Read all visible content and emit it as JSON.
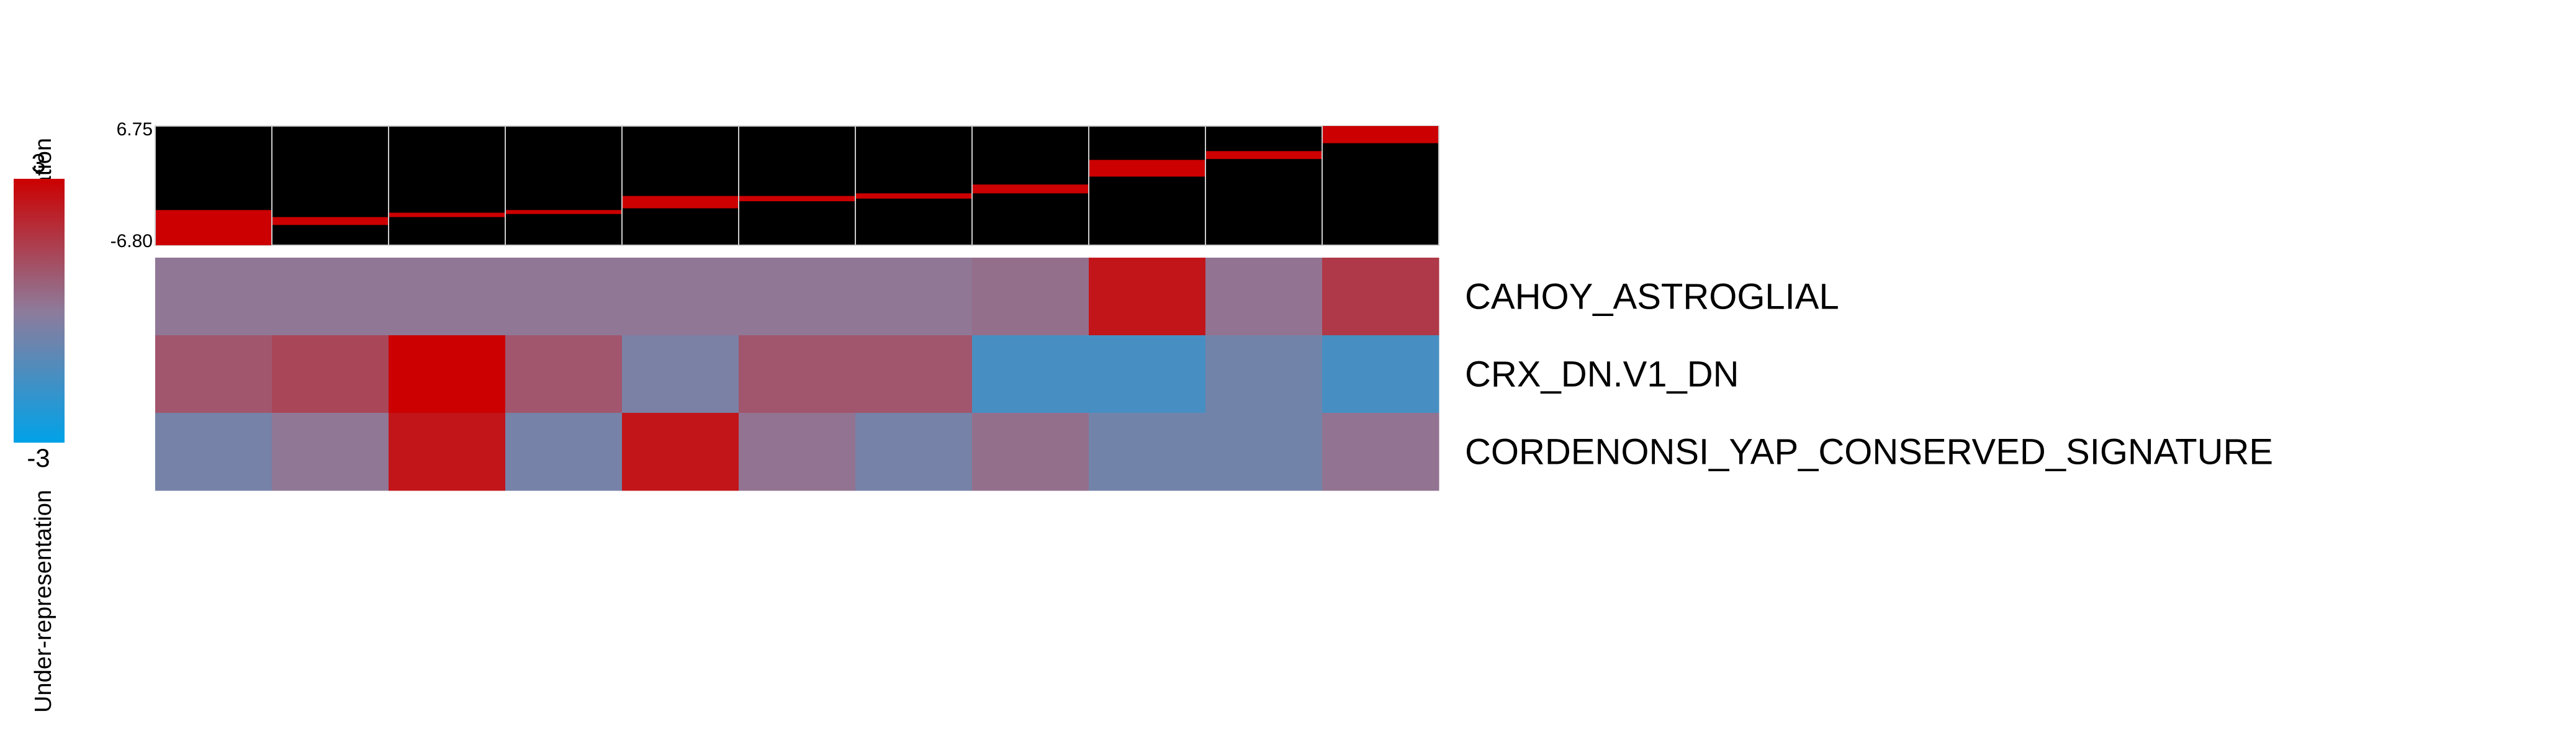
{
  "chart_data": {
    "type": "heatmap",
    "title": "",
    "legend": {
      "max_label": "3",
      "min_label": "-3",
      "over_label": "Over-representation",
      "under_label": "Under-representation",
      "colors": [
        "#00a2e8",
        "#8e7b9b",
        "#cc0000"
      ]
    },
    "profile": {
      "y_max_label": "6.75",
      "y_min_label": "-6.80",
      "ylim": [
        -6.8,
        6.75
      ],
      "bar_color": "#cc0000",
      "background": "#000000",
      "cluster_ranges": [
        [
          -6.8,
          -2.8
        ],
        [
          -4.5,
          -3.6
        ],
        [
          -3.6,
          -3.1
        ],
        [
          -3.25,
          -2.8
        ],
        [
          -2.6,
          -1.2
        ],
        [
          -1.8,
          -1.2
        ],
        [
          -1.5,
          -0.9
        ],
        [
          -0.9,
          0.1
        ],
        [
          1.0,
          2.9
        ],
        [
          3.0,
          3.9
        ],
        [
          4.8,
          6.75
        ]
      ]
    },
    "rows": [
      {
        "label": "CAHOY_ASTROGLIAL",
        "values": [
          0.1,
          0.1,
          0.1,
          0.1,
          0.1,
          0.1,
          0.1,
          0.3,
          2.5,
          0.2,
          1.6
        ]
      },
      {
        "label": "CRX_DN.V1_DN",
        "values": [
          0.9,
          1.3,
          3.0,
          0.9,
          -0.4,
          0.9,
          0.9,
          -1.5,
          -1.5,
          -0.6,
          -1.5
        ]
      },
      {
        "label": "CORDENONSI_YAP_CONSERVED_SIGNATURE",
        "values": [
          -0.5,
          0.1,
          2.5,
          -0.5,
          2.5,
          0.2,
          -0.5,
          0.3,
          -0.6,
          -0.6,
          0.2
        ]
      }
    ]
  }
}
